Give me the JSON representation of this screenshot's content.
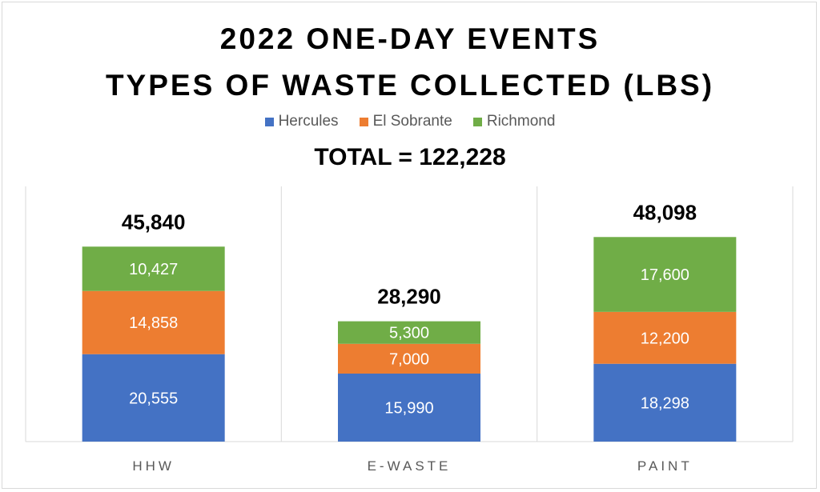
{
  "chart_data": {
    "type": "bar",
    "stacked": true,
    "title": [
      "2022 ONE-DAY EVENTS",
      "TYPES OF WASTE COLLECTED (LBS)"
    ],
    "subtitle": "TOTAL = 122,228",
    "categories": [
      "HHW",
      "E-WASTE",
      "PAINT"
    ],
    "series": [
      {
        "name": "Hercules",
        "color": "#4472C4",
        "values": [
          20555,
          15990,
          18298
        ]
      },
      {
        "name": "El Sobrante",
        "color": "#ED7D31",
        "values": [
          14858,
          7000,
          12200
        ]
      },
      {
        "name": "Richmond",
        "color": "#70AD47",
        "values": [
          10427,
          5300,
          17600
        ]
      }
    ],
    "totals": [
      45840,
      28290,
      48098
    ],
    "ylim": [
      0,
      60000
    ],
    "y_axis_visible": false,
    "grid": "vertical category separators",
    "legend_position": "top"
  }
}
